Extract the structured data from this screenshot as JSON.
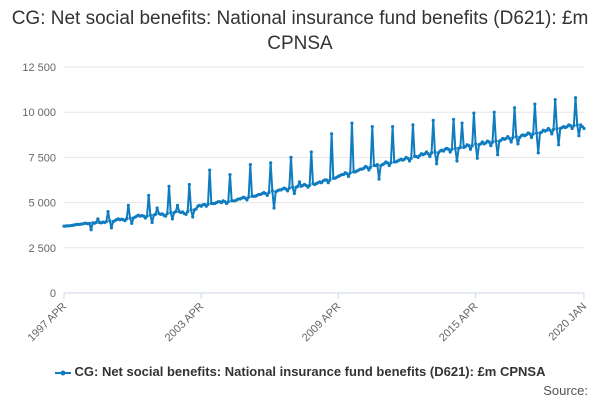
{
  "title": "CG: Net social benefits: National insurance fund benefits (D621): £m CPNSA",
  "source_label": "Source:",
  "colors": {
    "series": "#0f7cbf",
    "grid": "#e6e6e6",
    "axis": "#ccd6eb",
    "tick_text": "#666666"
  },
  "chart_data": {
    "type": "line",
    "title": "CG: Net social benefits: National insurance fund benefits (D621): £m CPNSA",
    "xlabel": "",
    "ylabel": "",
    "frequency": "monthly",
    "start": "1997-04",
    "end": "2020-01",
    "ylim": [
      0,
      12500
    ],
    "yticks": [
      0,
      2500,
      5000,
      7500,
      10000,
      12500
    ],
    "ytick_labels": [
      "0",
      "2 500",
      "5 000",
      "7 500",
      "10 000",
      "12 500"
    ],
    "xticks": [
      "1997-04",
      "2003-04",
      "2009-04",
      "2015-04",
      "2020-01"
    ],
    "xtick_labels": [
      "1997 APR",
      "2003 APR",
      "2009 APR",
      "2015 APR",
      "2020 JAN"
    ],
    "grid": true,
    "legend": "bottom",
    "series": [
      {
        "name": "CG: Net social benefits: National insurance fund benefits (D621): £m CPNSA",
        "values": [
          3700,
          3700,
          3720,
          3710,
          3730,
          3740,
          3760,
          3780,
          3800,
          3790,
          3810,
          3820,
          3850,
          3860,
          3830,
          3850,
          3500,
          3880,
          3860,
          3900,
          4100,
          3900,
          3880,
          3920,
          3900,
          3950,
          4500,
          4000,
          3600,
          3950,
          4000,
          4050,
          4100,
          4050,
          4080,
          4050,
          4000,
          4100,
          4850,
          4150,
          3850,
          4150,
          4200,
          4250,
          4300,
          4250,
          4280,
          4250,
          4150,
          4250,
          5400,
          4300,
          3900,
          4300,
          4350,
          4700,
          4400,
          4350,
          4380,
          4300,
          4250,
          4400,
          5900,
          4450,
          4100,
          4450,
          4500,
          4850,
          4500,
          4450,
          4480,
          4400,
          4350,
          4500,
          6000,
          4600,
          4200,
          4600,
          4650,
          4800,
          4850,
          4800,
          4880,
          4900,
          4800,
          4900,
          6800,
          4950,
          4950,
          4950,
          5000,
          5050,
          5050,
          5000,
          5100,
          5050,
          4950,
          5050,
          6550,
          5100,
          5100,
          5100,
          5150,
          5200,
          5200,
          5250,
          5300,
          5250,
          5150,
          5300,
          7100,
          5350,
          5350,
          5350,
          5400,
          5450,
          5450,
          5500,
          5550,
          5500,
          5400,
          5550,
          7200,
          5650,
          4700,
          5600,
          5650,
          5700,
          5700,
          5750,
          5800,
          5750,
          5650,
          5800,
          7500,
          5850,
          5500,
          5850,
          5900,
          6150,
          5900,
          5950,
          6000,
          5950,
          5850,
          5950,
          7800,
          6050,
          6000,
          6050,
          6100,
          6150,
          6100,
          6200,
          6250,
          6250,
          6100,
          6250,
          8800,
          6350,
          6350,
          6400,
          6450,
          6500,
          6550,
          6550,
          6650,
          6600,
          6450,
          6650,
          9400,
          6700,
          6700,
          6750,
          6800,
          6850,
          6850,
          6900,
          7000,
          6950,
          6800,
          6950,
          9200,
          7050,
          7050,
          7100,
          6300,
          7050,
          7100,
          7150,
          7250,
          7200,
          7050,
          7200,
          9200,
          7250,
          7250,
          7300,
          7350,
          7400,
          7350,
          7400,
          7500,
          7450,
          7300,
          7450,
          9300,
          7550,
          7550,
          7500,
          7600,
          7700,
          7650,
          7700,
          7800,
          7700,
          7550,
          7750,
          9550,
          7800,
          7150,
          7750,
          7850,
          7900,
          7850,
          7950,
          8000,
          7950,
          7800,
          7950,
          9600,
          8000,
          7300,
          8000,
          8050,
          9400,
          8050,
          8100,
          8200,
          8150,
          7950,
          8150,
          9950,
          8250,
          7450,
          8200,
          8250,
          8350,
          8250,
          8300,
          8400,
          8350,
          8150,
          8350,
          10000,
          8400,
          7650,
          8400,
          8450,
          8550,
          8500,
          8550,
          8650,
          8550,
          8350,
          8600,
          10250,
          8650,
          8250,
          8600,
          8700,
          8750,
          8700,
          8750,
          8850,
          8800,
          8600,
          8800,
          10450,
          8850,
          7750,
          8850,
          8900,
          9000,
          8950,
          9000,
          9100,
          9000,
          8800,
          9050,
          10700,
          9100,
          8200,
          9100,
          9150,
          9200,
          9150,
          9200,
          9300,
          9250,
          9100,
          9250,
          10800,
          9300,
          8700,
          9300,
          9200,
          9100
        ]
      }
    ]
  }
}
